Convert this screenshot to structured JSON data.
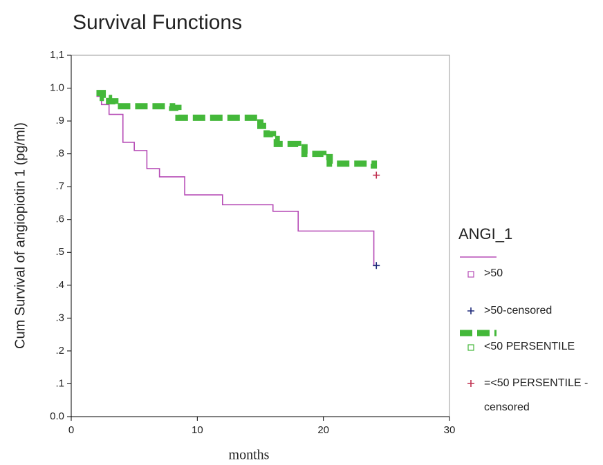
{
  "chart_data": {
    "type": "step",
    "title": "Survival Functions",
    "x_label": "months",
    "y_label": "Cum Survival of angiopiotin 1 (pg/ml)",
    "legend_title": "ANGI_1",
    "xlim": [
      0,
      30
    ],
    "xticks": [
      0,
      10,
      20,
      30
    ],
    "ylim": [
      0,
      1.1
    ],
    "yticks": [
      {
        "value": 0,
        "label": "0.0"
      },
      {
        "value": 0.1,
        "label": ".1"
      },
      {
        "value": 0.2,
        "label": ".2"
      },
      {
        "value": 0.3,
        "label": ".3"
      },
      {
        "value": 0.4,
        "label": ".4"
      },
      {
        "value": 0.5,
        "label": ".5"
      },
      {
        "value": 0.6,
        "label": ".6"
      },
      {
        "value": 0.7,
        "label": ".7"
      },
      {
        "value": 0.8,
        "label": ".8"
      },
      {
        "value": 0.9,
        "label": ".9"
      },
      {
        "value": 1.0,
        "label": "1.0"
      },
      {
        "value": 1.1,
        "label": "1,1"
      }
    ],
    "series": [
      {
        "name": ">50",
        "color": "#b64cb6",
        "style": "line",
        "x": [
          2,
          2.4,
          3,
          4.1,
          5,
          6,
          7,
          9,
          12,
          16,
          18,
          24
        ],
        "values": [
          0.975,
          0.95,
          0.92,
          0.835,
          0.81,
          0.755,
          0.73,
          0.675,
          0.645,
          0.625,
          0.565,
          0.46
        ]
      },
      {
        "name": ">50-censored",
        "color": "#1e2a7a",
        "style": "censored",
        "x": [
          24.2
        ],
        "values": [
          0.46
        ]
      },
      {
        "name": "<50 PERSENTILE",
        "color": "#44b83a",
        "style": "dashed",
        "x": [
          2,
          2.5,
          3,
          3.5,
          8,
          8.5,
          15,
          15.5,
          16,
          16.3,
          18,
          18.5,
          20,
          20.5,
          24
        ],
        "values": [
          0.985,
          0.97,
          0.96,
          0.945,
          0.94,
          0.91,
          0.885,
          0.86,
          0.845,
          0.83,
          0.82,
          0.8,
          0.79,
          0.77,
          0.755
        ]
      },
      {
        "name": "=<50 PERSENTILE -censored",
        "color": "#c03050",
        "style": "censored",
        "x": [
          24.2
        ],
        "values": [
          0.735
        ]
      }
    ]
  }
}
